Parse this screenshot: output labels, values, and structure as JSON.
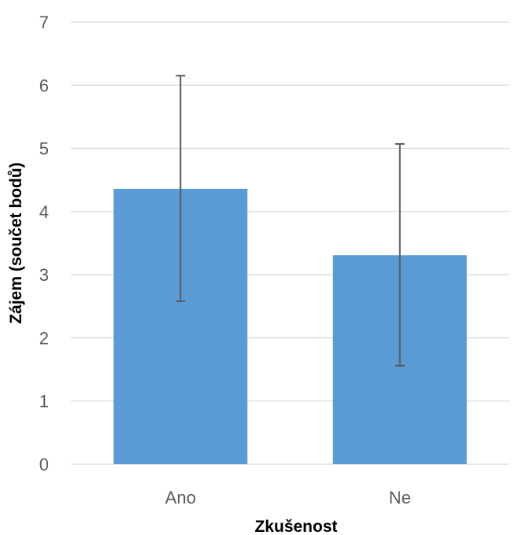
{
  "chart_data": {
    "type": "bar",
    "title": "",
    "xlabel": "Zkušenost",
    "ylabel": "Zájem (součet bodů)",
    "categories": [
      "Ano",
      "Ne"
    ],
    "values": [
      4.36,
      3.31
    ],
    "error_bars": {
      "lower": [
        2.58,
        1.56
      ],
      "upper": [
        6.15,
        5.07
      ]
    },
    "ylim": [
      0,
      7
    ],
    "yticks": [
      "0",
      "1",
      "2",
      "3",
      "4",
      "5",
      "6",
      "7"
    ],
    "grid": true,
    "bar_color": "#5b9bd5"
  }
}
